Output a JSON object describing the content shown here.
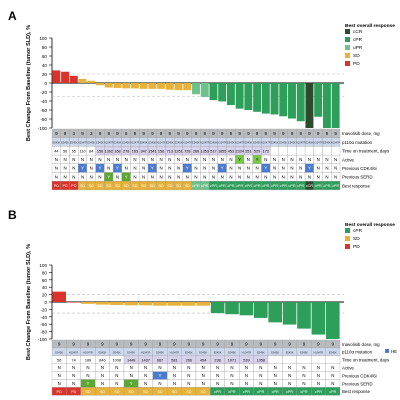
{
  "colors": {
    "cCR": "#2d4a2c",
    "cPR": "#2e9e5b",
    "uPR": "#6cc28a",
    "SD": "#e6b23a",
    "PD": "#d9342b",
    "header_gray": "#b9bcbf",
    "mutation_blue": "#cdd7ee",
    "time_purple": "#d9d2ec",
    "active_green": "#7ac943",
    "cdk_blue": "#4a7bd0",
    "serd_green": "#5aa832",
    "threshold": "#bbbbbb",
    "axis": "#000000"
  },
  "chart_data": [
    {
      "panel_label": "A",
      "type": "bar",
      "ylabel": "Best Change From Baseline (tumor SLD), %",
      "ylim": [
        -100,
        100
      ],
      "yticks": [
        100,
        80,
        60,
        40,
        20,
        0,
        -20,
        -40,
        -60,
        -80,
        -100
      ],
      "threshold_lines": [
        20,
        -30
      ],
      "legend": {
        "title": "Best overall response",
        "entries": [
          "cCR",
          "cPR",
          "uPR",
          "SD",
          "PD"
        ]
      },
      "values": [
        28,
        25,
        16,
        9,
        5,
        -5,
        -10,
        -11,
        -12,
        -12,
        -13,
        -13,
        -13,
        -15,
        -16,
        -16,
        -25,
        -31,
        -38,
        -41,
        -49,
        -57,
        -60,
        -64,
        -68,
        -70,
        -74,
        -79,
        -85,
        -100,
        -75,
        -100,
        -100
      ],
      "responses": [
        "PD",
        "PD",
        "PD",
        "SD",
        "SD",
        "SD",
        "SD",
        "SD",
        "SD",
        "SD",
        "SD",
        "SD",
        "SD",
        "SD",
        "SD",
        "SD",
        "uPR",
        "uPR",
        "cPR",
        "cPR",
        "cPR",
        "cPR",
        "cPR",
        "cPR",
        "cPR",
        "cPR",
        "cPR",
        "cPR",
        "cPR",
        "cCR",
        "cPR",
        "cPR",
        "cPR"
      ],
      "table": {
        "row_labels": [
          "Inavolisib dose, mg",
          "p110α mutation",
          "Time on treatment, days",
          "Active",
          "Previous CDK4/6i",
          "Previous SERD",
          "Best response"
        ],
        "dose": [
          "9",
          "9",
          "3",
          "9",
          "3",
          "9",
          "9",
          "9",
          "6",
          "9",
          "9",
          "9",
          "9",
          "9",
          "9",
          "9",
          "9",
          "9",
          "9",
          "9",
          "9",
          "9",
          "9",
          "9",
          "9",
          "9",
          "9",
          "9",
          "9",
          "9",
          "9",
          "9",
          "9"
        ],
        "mutation": [
          "E545K",
          "E545K",
          "E545K",
          "H1047R",
          "E545K",
          "E542K",
          "H1047R",
          "E545K",
          "E545K",
          "H1047R",
          "E545K",
          "E545K",
          "H1047R",
          "E545K",
          "E545K",
          "H1047R",
          "E545K",
          "H1047R",
          "E545K",
          "H1047R",
          "E542K",
          "H1047R",
          "E545K",
          "E545K",
          "H1047R",
          "E545K",
          "E545K",
          "E542K",
          "H1047R",
          "E545K",
          "H1047R",
          "E545K",
          "H1047R"
        ],
        "time": [
          "44",
          "56",
          "55",
          "110",
          "84",
          "156",
          "1392",
          "168",
          "278",
          "163",
          "347",
          "1541",
          "156",
          "713",
          "1261",
          "728",
          "266",
          "1353",
          "517",
          "1655",
          "453",
          "2324",
          "251",
          "529",
          "172",
          "",
          "",
          "",
          "",
          "",
          "",
          "",
          ""
        ],
        "active": [
          "N",
          "N",
          "N",
          "N",
          "N",
          "N",
          "N",
          "N",
          "N",
          "N",
          "N",
          "N",
          "N",
          "N",
          "N",
          "N",
          "N",
          "N",
          "N",
          "N",
          "N",
          "Y",
          "N",
          "Y",
          "N",
          "N",
          "N",
          "N",
          "N",
          "N",
          "N",
          "N",
          "N"
        ],
        "cdk": [
          "N",
          "N",
          "N",
          "Y",
          "N",
          "Y",
          "N",
          "Y",
          "N",
          "N",
          "N",
          "Y",
          "N",
          "N",
          "N",
          "Y",
          "N",
          "N",
          "N",
          "Y",
          "N",
          "N",
          "N",
          "N",
          "Y",
          "N",
          "N",
          "N",
          "N",
          "Y",
          "N",
          "N",
          "N"
        ],
        "serd": [
          "N",
          "N",
          "N",
          "N",
          "N",
          "N",
          "Y",
          "N",
          "Y",
          "N",
          "N",
          "N",
          "N",
          "N",
          "N",
          "N",
          "N",
          "N",
          "N",
          "N",
          "N",
          "N",
          "N",
          "N",
          "N",
          "N",
          "N",
          "N",
          "N",
          "N",
          "N",
          "N",
          "N"
        ],
        "best": [
          "PD",
          "PD",
          "PD",
          "SD",
          "SD",
          "SD",
          "SD",
          "SD",
          "SD",
          "SD",
          "SD",
          "SD",
          "SD",
          "SD",
          "SD",
          "SD",
          "uPR",
          "uPR",
          "cPR",
          "cPR",
          "cPR",
          "cPR",
          "cPR",
          "cPR",
          "cPR",
          "cPR",
          "cPR",
          "cPR",
          "cPR",
          "cCR",
          "cPR",
          "cPR",
          "cPR"
        ]
      }
    },
    {
      "panel_label": "B",
      "type": "bar",
      "ylabel": "Best Change From Baseline (tumor SLD), %",
      "ylim": [
        -100,
        100
      ],
      "yticks": [
        100,
        80,
        60,
        40,
        20,
        0,
        -20,
        -40,
        -60,
        -80,
        -100
      ],
      "threshold_lines": [
        20,
        -30
      ],
      "legend": {
        "title": "Best overall response",
        "entries": [
          "cPR",
          "SD",
          "PD"
        ]
      },
      "extra_legend": "HE",
      "values": [
        28,
        0,
        -5,
        -7,
        -8,
        -9,
        -9,
        -10,
        -10,
        -10,
        -10,
        -30,
        -33,
        -36,
        -43,
        -55,
        -61,
        -72,
        -88,
        -100
      ],
      "responses": [
        "PD",
        "PD",
        "SD",
        "SD",
        "SD",
        "SD",
        "SD",
        "SD",
        "SD",
        "SD",
        "SD",
        "cPR",
        "cPR",
        "cPR",
        "cPR",
        "cPR",
        "cPR",
        "cPR",
        "cPR",
        "cPR"
      ],
      "table": {
        "row_labels": [
          "Inavolisib dose, mg",
          "p110α mutation",
          "Time on treatment, days",
          "Active",
          "Previous CDK4/6i",
          "Previous SERD",
          "Best response"
        ],
        "dose": [
          "9",
          "9",
          "9",
          "9",
          "9",
          "9",
          "9",
          "9",
          "9",
          "9",
          "9",
          "9",
          "9",
          "9",
          "9",
          "9",
          "9",
          "9",
          "9",
          "9"
        ],
        "mutation": [
          "E545K",
          "H1047R",
          "H1047R",
          "E545K",
          "E545K",
          "E545K",
          "H1047R",
          "E545K",
          "H1047R",
          "E545K",
          "E545K",
          "E545K",
          "E545K",
          "H1047R",
          "E545K",
          "E545K",
          "E545K",
          "E545K",
          "H1047R",
          "E545K"
        ],
        "time": [
          "56",
          "74",
          "189",
          "846",
          "1008",
          "1449",
          "1437",
          "667",
          "581",
          "266",
          "454",
          "238",
          "1071",
          "539",
          "1358",
          "",
          "",
          "",
          "",
          ""
        ],
        "active": [
          "N",
          "N",
          "N",
          "N",
          "N",
          "N",
          "N",
          "N",
          "N",
          "N",
          "N",
          "N",
          "N",
          "N",
          "N",
          "N",
          "N",
          "N",
          "N",
          "N"
        ],
        "cdk": [
          "N",
          "N",
          "N",
          "N",
          "N",
          "N",
          "N",
          "Y",
          "N",
          "N",
          "N",
          "N",
          "N",
          "N",
          "N",
          "N",
          "N",
          "N",
          "N",
          "N"
        ],
        "serd": [
          "N",
          "N",
          "Y",
          "N",
          "N",
          "Y",
          "N",
          "N",
          "N",
          "N",
          "N",
          "N",
          "N",
          "N",
          "N",
          "N",
          "N",
          "N",
          "N",
          "N"
        ],
        "best": [
          "PD",
          "PD",
          "SD",
          "SD",
          "SD",
          "SD",
          "SD",
          "SD",
          "SD",
          "SD",
          "SD",
          "cPR",
          "cPR",
          "cPR",
          "cPR",
          "cPR",
          "cPR",
          "cPR",
          "cPR",
          "cPR"
        ]
      }
    }
  ]
}
